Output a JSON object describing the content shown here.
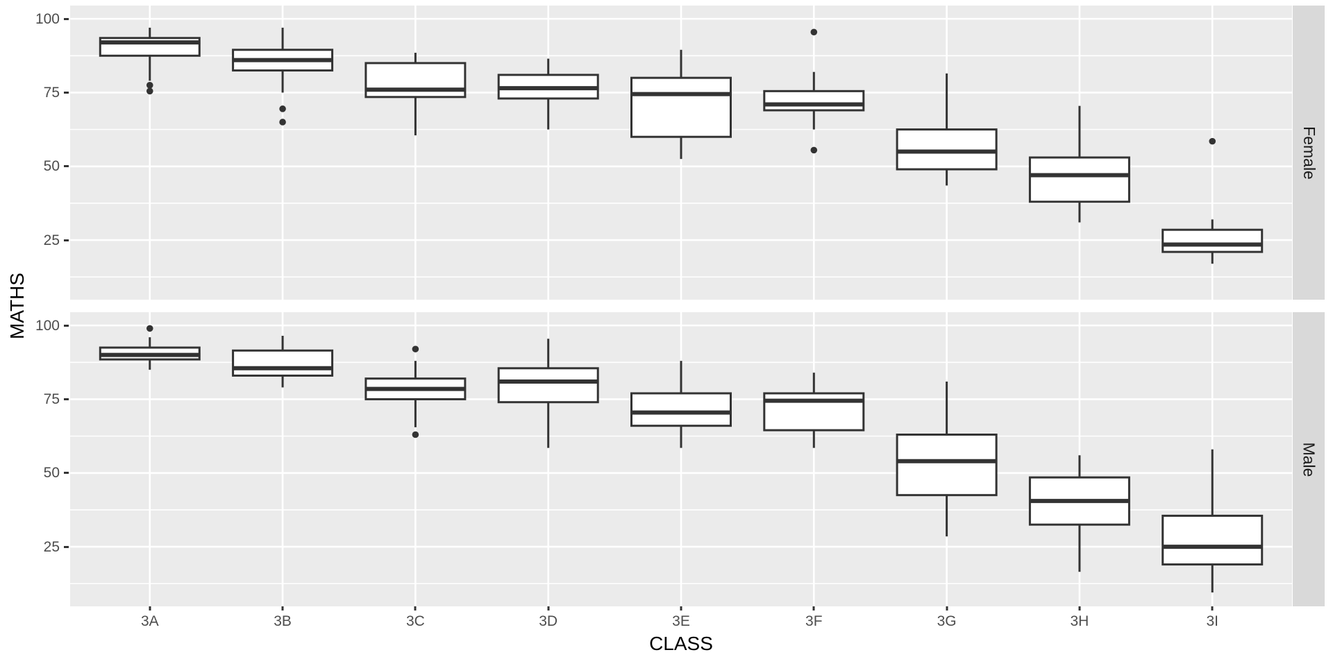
{
  "chart_data": {
    "type": "boxplot",
    "title": "",
    "xlabel": "CLASS",
    "ylabel": "MATHS",
    "categories": [
      "3A",
      "3B",
      "3C",
      "3D",
      "3E",
      "3F",
      "3G",
      "3H",
      "3I"
    ],
    "legend": "none",
    "grid": "white major and minor gridlines on grey panel",
    "y_axis": {
      "ticks": [
        100,
        75,
        50,
        25
      ],
      "tick_labels": [
        "100",
        "75",
        "50",
        "25"
      ],
      "minor_gridlines": [
        87.5,
        62.5,
        37.5,
        12.5
      ],
      "range": [
        4.8,
        104.5
      ]
    },
    "facets": [
      {
        "label": "Female",
        "boxes": [
          {
            "category": "3A",
            "whisker_low": 79,
            "q1": 87.5,
            "median": 92,
            "q3": 93.5,
            "whisker_high": 97,
            "outliers": [
              77.5,
              75.5
            ]
          },
          {
            "category": "3B",
            "whisker_low": 75,
            "q1": 82.5,
            "median": 86,
            "q3": 89.5,
            "whisker_high": 97,
            "outliers": [
              69.5,
              65
            ]
          },
          {
            "category": "3C",
            "whisker_low": 60.5,
            "q1": 73.5,
            "median": 76,
            "q3": 85,
            "whisker_high": 88.5,
            "outliers": []
          },
          {
            "category": "3D",
            "whisker_low": 62.5,
            "q1": 73,
            "median": 76.5,
            "q3": 81,
            "whisker_high": 86.5,
            "outliers": []
          },
          {
            "category": "3E",
            "whisker_low": 52.5,
            "q1": 60,
            "median": 74.5,
            "q3": 80,
            "whisker_high": 89.5,
            "outliers": []
          },
          {
            "category": "3F",
            "whisker_low": 62.5,
            "q1": 69,
            "median": 71,
            "q3": 75.5,
            "whisker_high": 82,
            "outliers": [
              95.5,
              55.5
            ]
          },
          {
            "category": "3G",
            "whisker_low": 43.5,
            "q1": 49,
            "median": 55,
            "q3": 62.5,
            "whisker_high": 81.5,
            "outliers": []
          },
          {
            "category": "3H",
            "whisker_low": 31,
            "q1": 38,
            "median": 47,
            "q3": 53,
            "whisker_high": 70.5,
            "outliers": []
          },
          {
            "category": "3I",
            "whisker_low": 17,
            "q1": 21,
            "median": 23.5,
            "q3": 28.5,
            "whisker_high": 32,
            "outliers": [
              58.5
            ]
          }
        ]
      },
      {
        "label": "Male",
        "boxes": [
          {
            "category": "3A",
            "whisker_low": 85,
            "q1": 88.5,
            "median": 90,
            "q3": 92.5,
            "whisker_high": 96,
            "outliers": [
              99
            ]
          },
          {
            "category": "3B",
            "whisker_low": 79,
            "q1": 83,
            "median": 85.5,
            "q3": 91.5,
            "whisker_high": 96.5,
            "outliers": []
          },
          {
            "category": "3C",
            "whisker_low": 65.5,
            "q1": 75,
            "median": 78.5,
            "q3": 82,
            "whisker_high": 88,
            "outliers": [
              92,
              63
            ]
          },
          {
            "category": "3D",
            "whisker_low": 58.5,
            "q1": 74,
            "median": 81,
            "q3": 85.5,
            "whisker_high": 95.5,
            "outliers": []
          },
          {
            "category": "3E",
            "whisker_low": 58.5,
            "q1": 66,
            "median": 70.5,
            "q3": 77,
            "whisker_high": 88,
            "outliers": []
          },
          {
            "category": "3F",
            "whisker_low": 58.5,
            "q1": 64.5,
            "median": 74.5,
            "q3": 77,
            "whisker_high": 84,
            "outliers": []
          },
          {
            "category": "3G",
            "whisker_low": 28.5,
            "q1": 42.5,
            "median": 54,
            "q3": 63,
            "whisker_high": 81,
            "outliers": []
          },
          {
            "category": "3H",
            "whisker_low": 16.5,
            "q1": 32.5,
            "median": 40.5,
            "q3": 48.5,
            "whisker_high": 56,
            "outliers": []
          },
          {
            "category": "3I",
            "whisker_low": 9.5,
            "q1": 19,
            "median": 25,
            "q3": 35.5,
            "whisker_high": 58,
            "outliers": []
          }
        ]
      }
    ]
  },
  "style": {
    "plot_bg": "#FFFFFF",
    "panel_bg": "#EBEBEB",
    "strip_bg": "#D9D9D9",
    "grid_color": "#FFFFFF",
    "box_stroke": "#333333",
    "box_fill": "#FFFFFF",
    "outlier_color": "#333333",
    "tick_color": "#333333",
    "tick_text_color": "#4D4D4D",
    "axis_title_color": "#000000",
    "strip_text_color": "#1A1A1A"
  }
}
